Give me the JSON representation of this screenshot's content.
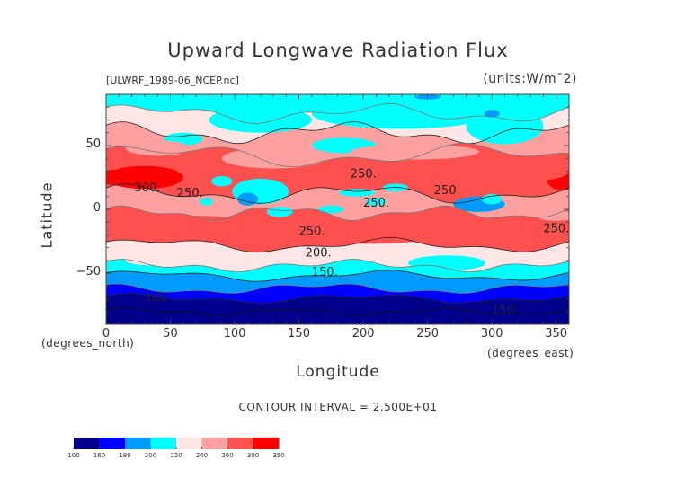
{
  "chart_data": {
    "type": "heatmap",
    "subtype": "filled-contour-map",
    "title": "Upward Longwave Radiation Flux",
    "file_label": "[ULWRF_1989-06_NCEP.nc]",
    "units_label": "(units:W/m¯2)",
    "xlabel": "Longitude",
    "ylabel": "Latitude",
    "x_units_label": "(degrees_east)",
    "y_units_label": "(degrees_north)",
    "xlim": [
      0,
      360
    ],
    "ylim": [
      -90,
      90
    ],
    "x_ticks": [
      "0",
      "50",
      "100",
      "150",
      "200",
      "250",
      "300",
      "350"
    ],
    "y_ticks": [
      "50",
      "0",
      "-50"
    ],
    "contour_interval_label": "CONTOUR INTERVAL = 2.500E+01",
    "contour_labels": [
      "300.",
      "250.",
      "250.",
      "250.",
      "250.",
      "250.",
      "250.",
      "200.",
      "150.",
      "100",
      "150"
    ],
    "colorbar": {
      "levels": [
        "100",
        "160",
        "180",
        "200",
        "220",
        "240",
        "260",
        "300",
        "350"
      ],
      "colors": [
        "#00008c",
        "#0000ff",
        "#009bff",
        "#00ffff",
        "#ffe6e6",
        "#ffa0a0",
        "#ff5050",
        "#ff0000"
      ]
    },
    "zonal_bands": [
      {
        "lat_range": [
          75,
          90
        ],
        "value_range": "200-220",
        "color": "#00ffff"
      },
      {
        "lat_range": [
          45,
          75
        ],
        "value_range": "220-260",
        "color": "#ffe6e6"
      },
      {
        "lat_range": [
          10,
          45
        ],
        "value_range": "260-300+",
        "color": "#ff5050"
      },
      {
        "lat_range": [
          -5,
          10
        ],
        "value_range": "200-260",
        "color": "#ffa0a0"
      },
      {
        "lat_range": [
          -30,
          -5
        ],
        "value_range": "260-300",
        "color": "#ff5050"
      },
      {
        "lat_range": [
          -45,
          -30
        ],
        "value_range": "220-260",
        "color": "#ffe6e6"
      },
      {
        "lat_range": [
          -55,
          -45
        ],
        "value_range": "200-220",
        "color": "#00ffff"
      },
      {
        "lat_range": [
          -65,
          -55
        ],
        "value_range": "180-200",
        "color": "#009bff"
      },
      {
        "lat_range": [
          -75,
          -65
        ],
        "value_range": "160-180",
        "color": "#0000ff"
      },
      {
        "lat_range": [
          -90,
          -75
        ],
        "value_range": "100-160",
        "color": "#00008c"
      }
    ]
  }
}
